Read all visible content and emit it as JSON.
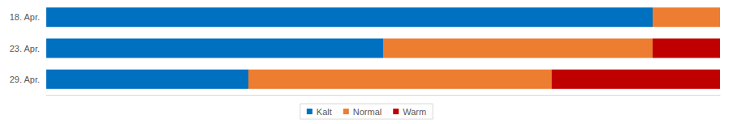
{
  "chart_data": {
    "type": "bar",
    "orientation": "horizontal",
    "stacked": true,
    "categories": [
      "18. Apr.",
      "23. Apr.",
      "29. Apr."
    ],
    "series": [
      {
        "name": "Kalt",
        "color": "#0070c0",
        "values": [
          90,
          50,
          30
        ]
      },
      {
        "name": "Normal",
        "color": "#ed7d31",
        "values": [
          10,
          40,
          45
        ]
      },
      {
        "name": "Warm",
        "color": "#c00000",
        "values": [
          0,
          10,
          25
        ]
      }
    ],
    "xlim": [
      0,
      100
    ],
    "xticks": [],
    "tick_labels": "y",
    "grid": false,
    "legend": "bottom"
  }
}
